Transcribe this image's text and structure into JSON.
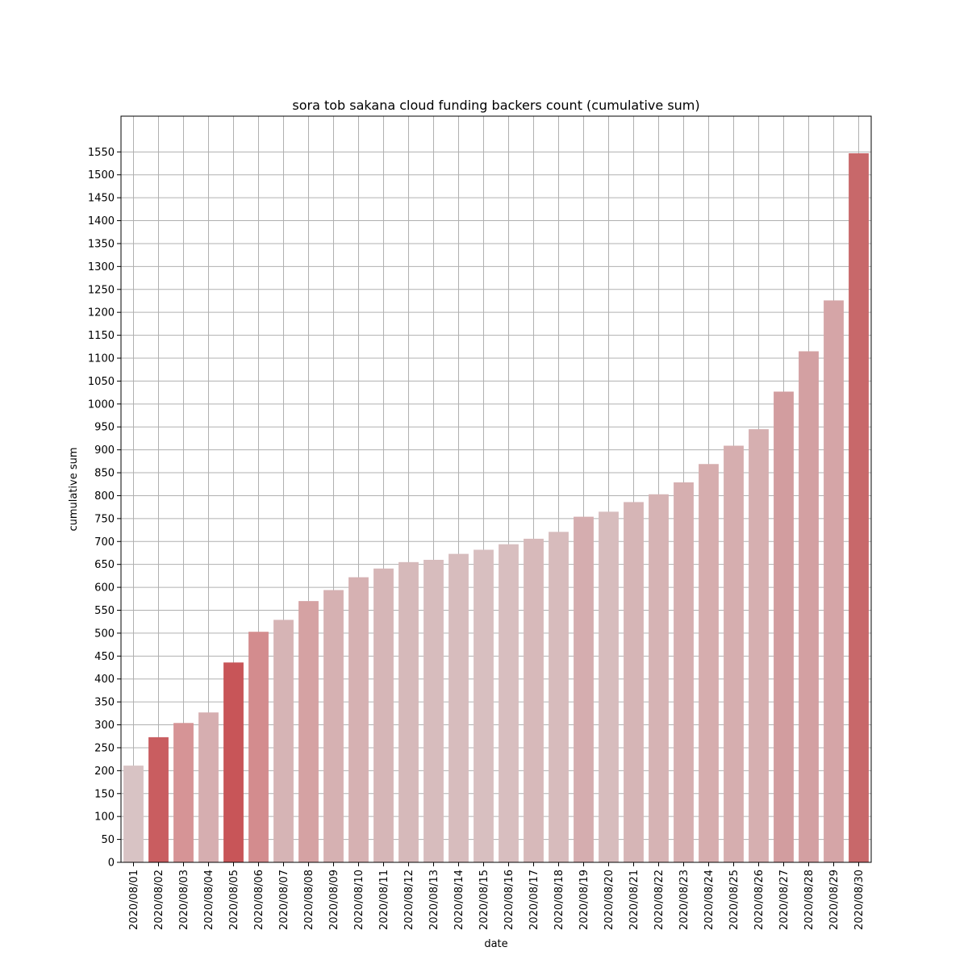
{
  "chart_data": {
    "type": "bar",
    "title": "sora tob sakana cloud funding backers count (cumulative sum)",
    "xlabel": "date",
    "ylabel": "cumulative sum",
    "categories": [
      "2020/08/01",
      "2020/08/02",
      "2020/08/03",
      "2020/08/04",
      "2020/08/05",
      "2020/08/06",
      "2020/08/07",
      "2020/08/08",
      "2020/08/09",
      "2020/08/10",
      "2020/08/11",
      "2020/08/12",
      "2020/08/13",
      "2020/08/14",
      "2020/08/15",
      "2020/08/16",
      "2020/08/17",
      "2020/08/18",
      "2020/08/19",
      "2020/08/20",
      "2020/08/21",
      "2020/08/22",
      "2020/08/23",
      "2020/08/24",
      "2020/08/25",
      "2020/08/26",
      "2020/08/27",
      "2020/08/28",
      "2020/08/29",
      "2020/08/30"
    ],
    "values": [
      211,
      273,
      304,
      327,
      436,
      503,
      529,
      570,
      594,
      622,
      641,
      655,
      660,
      673,
      682,
      694,
      706,
      721,
      754,
      765,
      786,
      803,
      829,
      869,
      909,
      945,
      1027,
      1115,
      1226,
      1547
    ],
    "colors": [
      "#d8c3c4",
      "#c95d60",
      "#d69496",
      "#d6aeb0",
      "#c85558",
      "#d38c8e",
      "#d6b4b5",
      "#d5a2a3",
      "#d6b1b2",
      "#d6b1b2",
      "#d6b6b7",
      "#d6b9ba",
      "#d7bcbd",
      "#d7bcbd",
      "#d8bfc0",
      "#d8bebf",
      "#d7b9ba",
      "#d7bbbc",
      "#d5adaf",
      "#d7bcbd",
      "#d6b5b6",
      "#d6b3b4",
      "#d6afb0",
      "#d6adae",
      "#d6aeaf",
      "#d6afb0",
      "#d29d9f",
      "#d3a0a2",
      "#d5a5a7",
      "#c8686a"
    ],
    "ylim": [
      0,
      1628
    ],
    "yticks": [
      0,
      50,
      100,
      150,
      200,
      250,
      300,
      350,
      400,
      450,
      500,
      550,
      600,
      650,
      700,
      750,
      800,
      850,
      900,
      950,
      1000,
      1050,
      1100,
      1150,
      1200,
      1250,
      1300,
      1350,
      1400,
      1450,
      1500,
      1550
    ],
    "grid": true
  }
}
